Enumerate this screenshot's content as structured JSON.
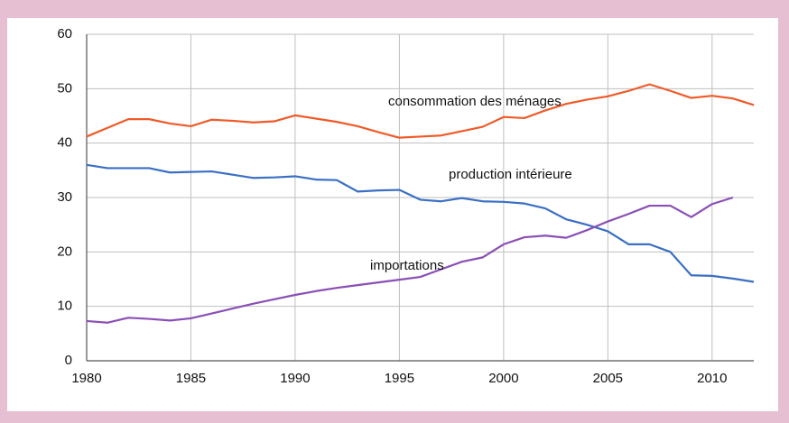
{
  "chart_data": {
    "type": "line",
    "x": [
      1980,
      1981,
      1982,
      1983,
      1984,
      1985,
      1986,
      1987,
      1988,
      1989,
      1990,
      1991,
      1992,
      1993,
      1994,
      1995,
      1996,
      1997,
      1998,
      1999,
      2000,
      2001,
      2002,
      2003,
      2004,
      2005,
      2006,
      2007,
      2008,
      2009,
      2010,
      2011,
      2012
    ],
    "series": [
      {
        "name": "consommation des ménages",
        "color": "#f05a28",
        "values": [
          41.2,
          42.8,
          44.4,
          44.4,
          43.6,
          43.1,
          44.3,
          44.1,
          43.8,
          44.0,
          45.1,
          44.5,
          43.9,
          43.1,
          42.0,
          41.0,
          41.2,
          41.4,
          42.2,
          43.0,
          44.8,
          44.6,
          46.0,
          47.2,
          48.0,
          48.6,
          49.6,
          50.8,
          49.6,
          48.3,
          48.7,
          48.2,
          47.0
        ]
      },
      {
        "name": "production intérieure",
        "color": "#3a6fc4",
        "values": [
          36.0,
          35.4,
          35.4,
          35.4,
          34.6,
          34.7,
          34.8,
          34.2,
          33.6,
          33.7,
          33.9,
          33.3,
          33.2,
          31.1,
          31.3,
          31.4,
          29.6,
          29.3,
          29.9,
          29.3,
          29.2,
          28.9,
          28.0,
          26.0,
          25.0,
          23.8,
          21.4,
          21.4,
          20.0,
          15.7,
          15.6,
          15.1,
          14.5
        ]
      },
      {
        "name": "importations",
        "color": "#8a4fb5",
        "values": [
          7.3,
          7.0,
          7.9,
          7.7,
          7.4,
          7.8,
          8.7,
          9.6,
          10.5,
          11.3,
          12.1,
          12.8,
          13.4,
          13.9,
          14.4,
          14.9,
          15.4,
          16.8,
          18.2,
          19.0,
          21.4,
          22.7,
          23.0,
          22.6,
          24.0,
          25.6,
          27.0,
          28.5,
          28.5,
          26.4,
          28.8,
          30.0,
          null
        ]
      }
    ],
    "xlim": [
      1980,
      2012
    ],
    "xticks": [
      1980,
      1985,
      1990,
      1995,
      2000,
      2005,
      2010
    ],
    "ylim": [
      0,
      60
    ],
    "yticks": [
      0,
      10,
      20,
      30,
      40,
      50,
      60
    ],
    "grid": true
  }
}
